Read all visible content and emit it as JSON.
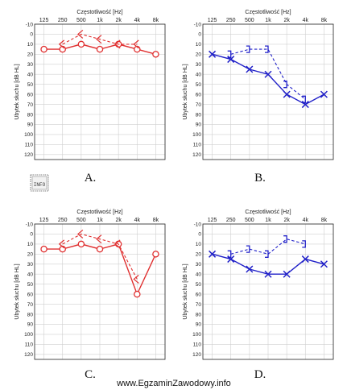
{
  "watermark": "www.EgzaminZawodowy.info",
  "info_stamp": "INFO",
  "chart_data": [
    {
      "type": "line",
      "panel_label": "A.",
      "xlabel": "Częstotliwość [Hz]",
      "ylabel": "Ubytek słuchu [dB HL]",
      "x_ticks": [
        "125",
        "250",
        "500",
        "1k",
        "2k",
        "4k",
        "8k"
      ],
      "y_ticks": [
        -10,
        0,
        10,
        20,
        30,
        40,
        50,
        60,
        70,
        80,
        90,
        100,
        110,
        120
      ],
      "ylim": [
        -10,
        125
      ],
      "y_inverted": true,
      "grid": true,
      "color": "#e03030",
      "series": [
        {
          "marker": "circle",
          "style": "solid",
          "x": [
            "125",
            "250",
            "500",
            "1k",
            "2k",
            "4k",
            "8k"
          ],
          "values": [
            15,
            15,
            10,
            15,
            10,
            15,
            20
          ]
        },
        {
          "marker": "bone-left",
          "style": "dashed",
          "x": [
            "250",
            "500",
            "1k",
            "2k",
            "4k"
          ],
          "values": [
            10,
            0,
            5,
            10,
            10
          ]
        }
      ]
    },
    {
      "type": "line",
      "panel_label": "B.",
      "xlabel": "Częstotliwość [Hz]",
      "ylabel": "Ubytek słuchu [dB HL]",
      "x_ticks": [
        "125",
        "250",
        "500",
        "1k",
        "2k",
        "4k",
        "8k"
      ],
      "y_ticks": [
        -10,
        0,
        10,
        20,
        30,
        40,
        50,
        60,
        70,
        80,
        90,
        100,
        110,
        120
      ],
      "ylim": [
        -10,
        125
      ],
      "y_inverted": true,
      "grid": true,
      "color": "#2020c8",
      "series": [
        {
          "marker": "x",
          "style": "solid",
          "x": [
            "125",
            "250",
            "500",
            "1k",
            "2k",
            "4k",
            "8k"
          ],
          "values": [
            20,
            25,
            35,
            40,
            60,
            70,
            60
          ]
        },
        {
          "marker": "bone-right",
          "style": "dashed",
          "x": [
            "250",
            "500",
            "1k",
            "2k",
            "4k"
          ],
          "values": [
            20,
            15,
            15,
            50,
            65
          ]
        }
      ]
    },
    {
      "type": "line",
      "panel_label": "C.",
      "xlabel": "Częstotliwość [Hz]",
      "ylabel": "Ubytek słuchu [dB HL]",
      "x_ticks": [
        "125",
        "250",
        "500",
        "1k",
        "2k",
        "4k",
        "8k"
      ],
      "y_ticks": [
        -10,
        0,
        10,
        20,
        30,
        40,
        50,
        60,
        70,
        80,
        90,
        100,
        110,
        120
      ],
      "ylim": [
        -10,
        125
      ],
      "y_inverted": true,
      "grid": true,
      "color": "#e03030",
      "series": [
        {
          "marker": "circle",
          "style": "solid",
          "x": [
            "125",
            "250",
            "500",
            "1k",
            "2k",
            "4k",
            "8k"
          ],
          "values": [
            15,
            15,
            10,
            15,
            10,
            60,
            20
          ]
        },
        {
          "marker": "bone-left",
          "style": "dashed",
          "x": [
            "250",
            "500",
            "1k",
            "2k",
            "4k"
          ],
          "values": [
            10,
            0,
            5,
            10,
            45
          ]
        }
      ]
    },
    {
      "type": "line",
      "panel_label": "D.",
      "xlabel": "Częstotliwość [Hz]",
      "ylabel": "Ubytek słuchu [dB HL]",
      "x_ticks": [
        "125",
        "250",
        "500",
        "1k",
        "2k",
        "4k",
        "8k"
      ],
      "y_ticks": [
        -10,
        0,
        10,
        20,
        30,
        40,
        50,
        60,
        70,
        80,
        90,
        100,
        110,
        120
      ],
      "ylim": [
        -10,
        125
      ],
      "y_inverted": true,
      "grid": true,
      "color": "#2020c8",
      "series": [
        {
          "marker": "x",
          "style": "solid",
          "x": [
            "125",
            "250",
            "500",
            "1k",
            "2k",
            "4k",
            "8k"
          ],
          "values": [
            20,
            25,
            35,
            40,
            40,
            25,
            30
          ]
        },
        {
          "marker": "bone-right",
          "style": "dashed",
          "x": [
            "250",
            "500",
            "1k",
            "2k",
            "4k"
          ],
          "values": [
            20,
            15,
            20,
            5,
            10
          ]
        }
      ]
    }
  ]
}
